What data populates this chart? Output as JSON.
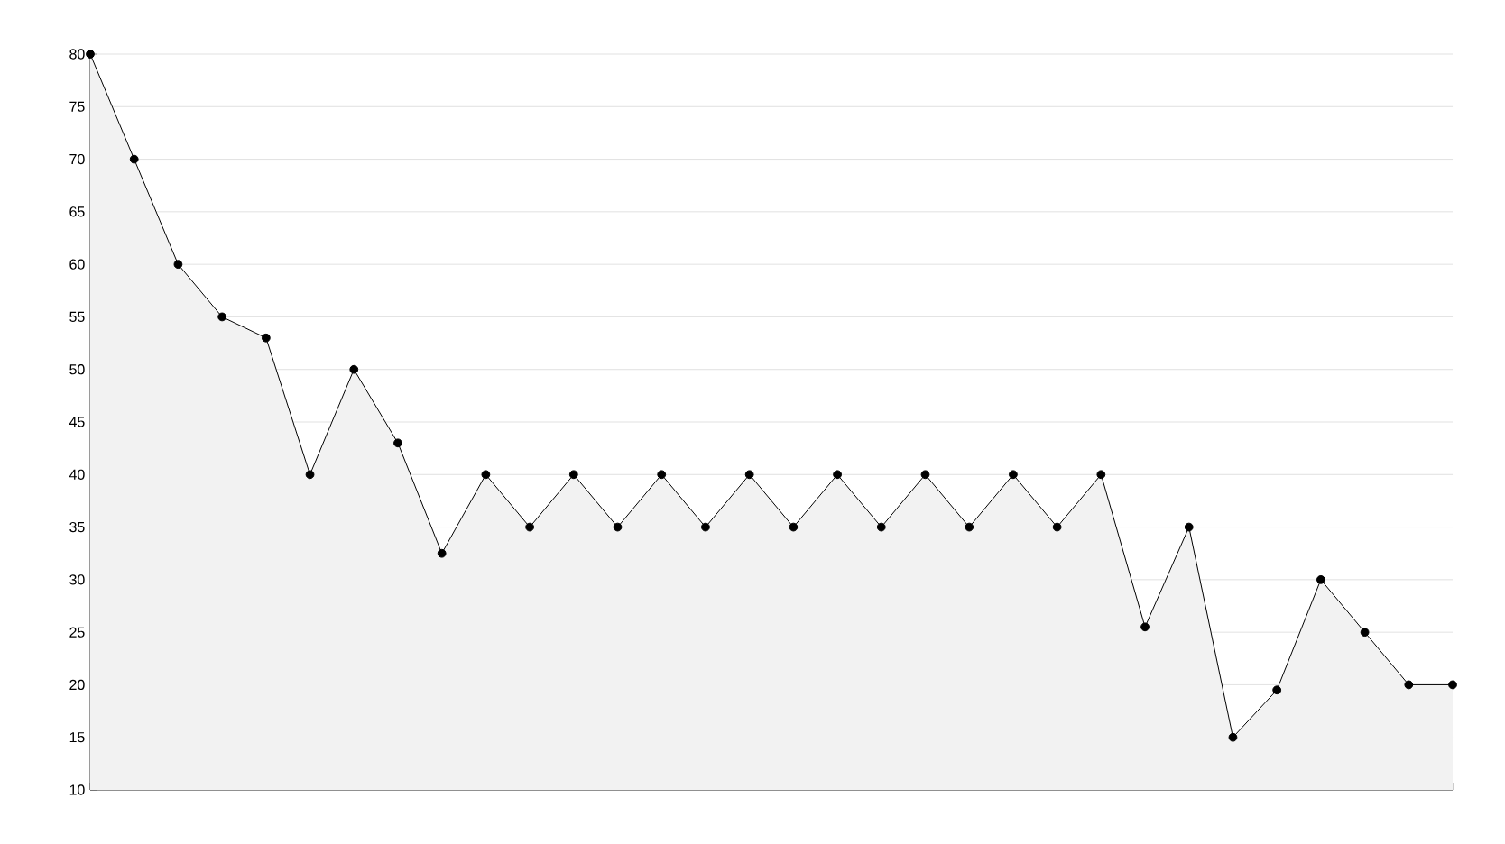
{
  "chart_data": {
    "type": "area",
    "categories": [
      null,
      null,
      null,
      null,
      null,
      null,
      null,
      null,
      null,
      null,
      null,
      null,
      null,
      null,
      null,
      null,
      null,
      null,
      null,
      null,
      null,
      null,
      null,
      null,
      null,
      null,
      null,
      null,
      null,
      null,
      null,
      null
    ],
    "series": [
      {
        "color": "#000000",
        "values": [
          80,
          70,
          60,
          55,
          53,
          40,
          50,
          43,
          32.5,
          40,
          35,
          40,
          35,
          40,
          35,
          40,
          35,
          40,
          35,
          40,
          35,
          40,
          35,
          40,
          25.5,
          35,
          15,
          19.5,
          30,
          25,
          20,
          20
        ]
      }
    ],
    "ylim": [
      10,
      80
    ],
    "yticks": [
      10,
      15,
      20,
      25,
      30,
      35,
      40,
      45,
      50,
      55,
      60,
      65,
      70,
      75,
      80
    ],
    "grid": "y",
    "marker": "circle",
    "line_style": "solid",
    "tick_labels": "y"
  }
}
